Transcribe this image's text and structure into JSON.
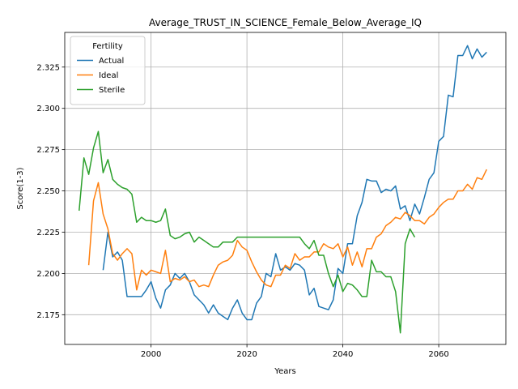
{
  "chart_data": {
    "type": "line",
    "title": "Average_TRUST_IN_SCIENCE_Female_Below_Average_IQ",
    "xlabel": "Years",
    "ylabel": "Score(1-3)",
    "xlim": [
      1982,
      2074
    ],
    "ylim": [
      2.157,
      2.346
    ],
    "xticks": [
      2000,
      2020,
      2040,
      2060
    ],
    "yticks": [
      2.175,
      2.2,
      2.225,
      2.25,
      2.275,
      2.3,
      2.325
    ],
    "ytick_labels": [
      "2.175",
      "2.200",
      "2.225",
      "2.250",
      "2.275",
      "2.300",
      "2.325"
    ],
    "grid": true,
    "legend": {
      "title": "Fertility",
      "position": "top-left"
    },
    "series": [
      {
        "name": "Actual",
        "color": "#1f77b4",
        "points": [
          [
            1990,
            2.202
          ],
          [
            1991,
            2.225
          ],
          [
            1992,
            2.21
          ],
          [
            1993,
            2.213
          ],
          [
            1994,
            2.208
          ],
          [
            1995,
            2.186
          ],
          [
            1996,
            2.186
          ],
          [
            1997,
            2.186
          ],
          [
            1998,
            2.186
          ],
          [
            1999,
            2.19
          ],
          [
            2000,
            2.195
          ],
          [
            2001,
            2.185
          ],
          [
            2002,
            2.179
          ],
          [
            2003,
            2.19
          ],
          [
            2004,
            2.193
          ],
          [
            2005,
            2.2
          ],
          [
            2006,
            2.197
          ],
          [
            2007,
            2.2
          ],
          [
            2008,
            2.195
          ],
          [
            2009,
            2.187
          ],
          [
            2010,
            2.184
          ],
          [
            2011,
            2.181
          ],
          [
            2012,
            2.176
          ],
          [
            2013,
            2.181
          ],
          [
            2014,
            2.176
          ],
          [
            2015,
            2.174
          ],
          [
            2016,
            2.172
          ],
          [
            2017,
            2.179
          ],
          [
            2018,
            2.184
          ],
          [
            2019,
            2.176
          ],
          [
            2020,
            2.172
          ],
          [
            2021,
            2.172
          ],
          [
            2022,
            2.182
          ],
          [
            2023,
            2.186
          ],
          [
            2024,
            2.2
          ],
          [
            2025,
            2.198
          ],
          [
            2026,
            2.212
          ],
          [
            2027,
            2.202
          ],
          [
            2028,
            2.204
          ],
          [
            2029,
            2.202
          ],
          [
            2030,
            2.206
          ],
          [
            2031,
            2.205
          ],
          [
            2032,
            2.202
          ],
          [
            2033,
            2.187
          ],
          [
            2034,
            2.191
          ],
          [
            2035,
            2.18
          ],
          [
            2036,
            2.179
          ],
          [
            2037,
            2.178
          ],
          [
            2038,
            2.184
          ],
          [
            2039,
            2.203
          ],
          [
            2040,
            2.2
          ],
          [
            2041,
            2.218
          ],
          [
            2042,
            2.218
          ],
          [
            2043,
            2.235
          ],
          [
            2044,
            2.243
          ],
          [
            2045,
            2.257
          ],
          [
            2046,
            2.256
          ],
          [
            2047,
            2.256
          ],
          [
            2048,
            2.249
          ],
          [
            2049,
            2.251
          ],
          [
            2050,
            2.25
          ],
          [
            2051,
            2.253
          ],
          [
            2052,
            2.239
          ],
          [
            2053,
            2.241
          ],
          [
            2054,
            2.232
          ],
          [
            2055,
            2.242
          ],
          [
            2056,
            2.236
          ],
          [
            2057,
            2.246
          ],
          [
            2058,
            2.257
          ],
          [
            2059,
            2.261
          ],
          [
            2060,
            2.28
          ],
          [
            2061,
            2.283
          ],
          [
            2062,
            2.308
          ],
          [
            2063,
            2.307
          ],
          [
            2064,
            2.332
          ],
          [
            2065,
            2.332
          ],
          [
            2066,
            2.338
          ],
          [
            2067,
            2.33
          ],
          [
            2068,
            2.336
          ],
          [
            2069,
            2.331
          ],
          [
            2070,
            2.334
          ]
        ]
      },
      {
        "name": "Ideal",
        "color": "#ff7f0e",
        "points": [
          [
            1987,
            2.205
          ],
          [
            1988,
            2.244
          ],
          [
            1989,
            2.255
          ],
          [
            1990,
            2.236
          ],
          [
            1991,
            2.227
          ],
          [
            1992,
            2.212
          ],
          [
            1993,
            2.208
          ],
          [
            1994,
            2.212
          ],
          [
            1995,
            2.215
          ],
          [
            1996,
            2.212
          ],
          [
            1997,
            2.19
          ],
          [
            1998,
            2.202
          ],
          [
            1999,
            2.199
          ],
          [
            2000,
            2.202
          ],
          [
            2001,
            2.201
          ],
          [
            2002,
            2.2
          ],
          [
            2003,
            2.214
          ],
          [
            2004,
            2.195
          ],
          [
            2005,
            2.197
          ],
          [
            2006,
            2.196
          ],
          [
            2007,
            2.198
          ],
          [
            2008,
            2.195
          ],
          [
            2009,
            2.196
          ],
          [
            2010,
            2.192
          ],
          [
            2011,
            2.193
          ],
          [
            2012,
            2.192
          ],
          [
            2013,
            2.199
          ],
          [
            2014,
            2.205
          ],
          [
            2015,
            2.207
          ],
          [
            2016,
            2.208
          ],
          [
            2017,
            2.211
          ],
          [
            2018,
            2.22
          ],
          [
            2019,
            2.216
          ],
          [
            2020,
            2.214
          ],
          [
            2021,
            2.207
          ],
          [
            2022,
            2.201
          ],
          [
            2023,
            2.196
          ],
          [
            2024,
            2.193
          ],
          [
            2025,
            2.192
          ],
          [
            2026,
            2.199
          ],
          [
            2027,
            2.199
          ],
          [
            2028,
            2.205
          ],
          [
            2029,
            2.203
          ],
          [
            2030,
            2.212
          ],
          [
            2031,
            2.208
          ],
          [
            2032,
            2.21
          ],
          [
            2033,
            2.21
          ],
          [
            2034,
            2.213
          ],
          [
            2035,
            2.213
          ],
          [
            2036,
            2.218
          ],
          [
            2037,
            2.216
          ],
          [
            2038,
            2.215
          ],
          [
            2039,
            2.218
          ],
          [
            2040,
            2.21
          ],
          [
            2041,
            2.216
          ],
          [
            2042,
            2.205
          ],
          [
            2043,
            2.213
          ],
          [
            2044,
            2.204
          ],
          [
            2045,
            2.215
          ],
          [
            2046,
            2.215
          ],
          [
            2047,
            2.222
          ],
          [
            2048,
            2.224
          ],
          [
            2049,
            2.229
          ],
          [
            2050,
            2.231
          ],
          [
            2051,
            2.234
          ],
          [
            2052,
            2.233
          ],
          [
            2053,
            2.237
          ],
          [
            2054,
            2.235
          ],
          [
            2055,
            2.232
          ],
          [
            2056,
            2.232
          ],
          [
            2057,
            2.23
          ],
          [
            2058,
            2.234
          ],
          [
            2059,
            2.236
          ],
          [
            2060,
            2.24
          ],
          [
            2061,
            2.243
          ],
          [
            2062,
            2.245
          ],
          [
            2063,
            2.245
          ],
          [
            2064,
            2.25
          ],
          [
            2065,
            2.25
          ],
          [
            2066,
            2.254
          ],
          [
            2067,
            2.251
          ],
          [
            2068,
            2.258
          ],
          [
            2069,
            2.257
          ],
          [
            2070,
            2.263
          ]
        ]
      },
      {
        "name": "Sterile",
        "color": "#2ca02c",
        "points": [
          [
            1985,
            2.238
          ],
          [
            1986,
            2.27
          ],
          [
            1987,
            2.26
          ],
          [
            1988,
            2.276
          ],
          [
            1989,
            2.286
          ],
          [
            1990,
            2.261
          ],
          [
            1991,
            2.269
          ],
          [
            1992,
            2.257
          ],
          [
            1993,
            2.254
          ],
          [
            1994,
            2.252
          ],
          [
            1995,
            2.251
          ],
          [
            1996,
            2.248
          ],
          [
            1997,
            2.231
          ],
          [
            1998,
            2.234
          ],
          [
            1999,
            2.232
          ],
          [
            2000,
            2.232
          ],
          [
            2001,
            2.231
          ],
          [
            2002,
            2.232
          ],
          [
            2003,
            2.239
          ],
          [
            2004,
            2.223
          ],
          [
            2005,
            2.221
          ],
          [
            2006,
            2.222
          ],
          [
            2007,
            2.224
          ],
          [
            2008,
            2.225
          ],
          [
            2009,
            2.219
          ],
          [
            2010,
            2.222
          ],
          [
            2011,
            2.22
          ],
          [
            2012,
            2.218
          ],
          [
            2013,
            2.216
          ],
          [
            2014,
            2.216
          ],
          [
            2015,
            2.219
          ],
          [
            2016,
            2.219
          ],
          [
            2017,
            2.219
          ],
          [
            2018,
            2.222
          ],
          [
            2019,
            2.222
          ],
          [
            2020,
            2.222
          ],
          [
            2021,
            2.222
          ],
          [
            2022,
            2.222
          ],
          [
            2023,
            2.222
          ],
          [
            2024,
            2.222
          ],
          [
            2025,
            2.222
          ],
          [
            2026,
            2.222
          ],
          [
            2027,
            2.222
          ],
          [
            2028,
            2.222
          ],
          [
            2029,
            2.222
          ],
          [
            2030,
            2.222
          ],
          [
            2031,
            2.222
          ],
          [
            2032,
            2.218
          ],
          [
            2033,
            2.215
          ],
          [
            2034,
            2.22
          ],
          [
            2035,
            2.211
          ],
          [
            2036,
            2.211
          ],
          [
            2037,
            2.2
          ],
          [
            2038,
            2.192
          ],
          [
            2039,
            2.199
          ],
          [
            2040,
            2.189
          ],
          [
            2041,
            2.194
          ],
          [
            2042,
            2.193
          ],
          [
            2043,
            2.19
          ],
          [
            2044,
            2.186
          ],
          [
            2045,
            2.186
          ],
          [
            2046,
            2.208
          ],
          [
            2047,
            2.201
          ],
          [
            2048,
            2.201
          ],
          [
            2049,
            2.198
          ],
          [
            2050,
            2.198
          ],
          [
            2051,
            2.189
          ],
          [
            2052,
            2.164
          ],
          [
            2053,
            2.218
          ],
          [
            2054,
            2.227
          ],
          [
            2055,
            2.222
          ]
        ]
      }
    ]
  }
}
